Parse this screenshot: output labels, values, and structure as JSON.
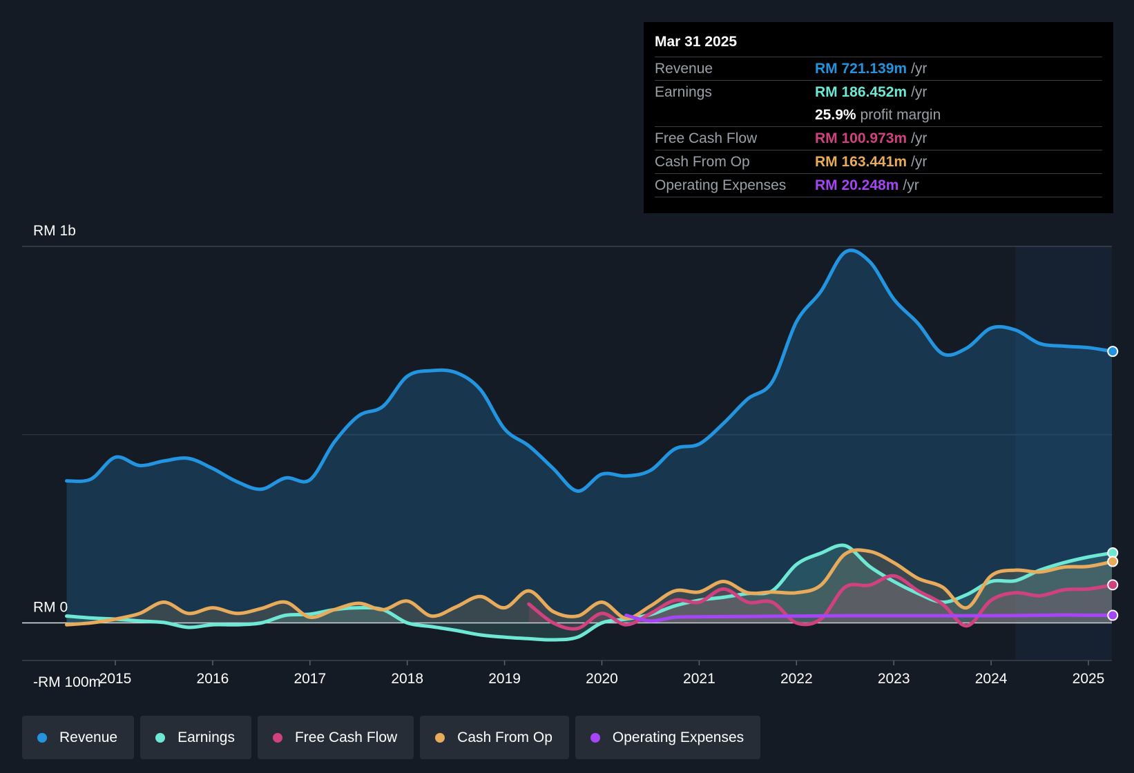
{
  "tooltip": {
    "date": "Mar 31 2025",
    "rows": [
      {
        "label": "Revenue",
        "value": "RM 721.139m",
        "unit": "/yr",
        "color": "#2394df"
      },
      {
        "label": "Earnings",
        "value": "RM 186.452m",
        "unit": "/yr",
        "color": "#6ee7d5"
      },
      {
        "label": "",
        "value": "25.9%",
        "unit": "profit margin",
        "color": "#ffffff"
      },
      {
        "label": "Free Cash Flow",
        "value": "RM 100.973m",
        "unit": "/yr",
        "color": "#d0427f"
      },
      {
        "label": "Cash From Op",
        "value": "RM 163.441m",
        "unit": "/yr",
        "color": "#e8ab5b"
      },
      {
        "label": "Operating Expenses",
        "value": "RM 20.248m",
        "unit": "/yr",
        "color": "#a545f5"
      }
    ]
  },
  "legend": [
    {
      "label": "Revenue",
      "color": "#2394df"
    },
    {
      "label": "Earnings",
      "color": "#6ee7d5"
    },
    {
      "label": "Free Cash Flow",
      "color": "#d0427f"
    },
    {
      "label": "Cash From Op",
      "color": "#e8ab5b"
    },
    {
      "label": "Operating Expenses",
      "color": "#a545f5"
    }
  ],
  "chart_data": {
    "type": "area",
    "title": "",
    "y_labels": [
      "RM 1b",
      "RM 0",
      "-RM 100m"
    ],
    "ylim": [
      -100,
      1000
    ],
    "xlim": [
      2014.5,
      2025.25
    ],
    "forecast_start": 2024.25,
    "x_ticks": [
      "2015",
      "2016",
      "2017",
      "2018",
      "2019",
      "2020",
      "2021",
      "2022",
      "2023",
      "2024",
      "2025"
    ],
    "series": [
      {
        "name": "Revenue",
        "color": "#2394df",
        "filled": true,
        "points": [
          [
            2014.5,
            377
          ],
          [
            2014.75,
            382
          ],
          [
            2015,
            440
          ],
          [
            2015.25,
            418
          ],
          [
            2015.5,
            430
          ],
          [
            2015.75,
            437
          ],
          [
            2016,
            410
          ],
          [
            2016.25,
            375
          ],
          [
            2016.5,
            355
          ],
          [
            2016.75,
            385
          ],
          [
            2017,
            380
          ],
          [
            2017.25,
            480
          ],
          [
            2017.5,
            550
          ],
          [
            2017.75,
            575
          ],
          [
            2018,
            655
          ],
          [
            2018.25,
            670
          ],
          [
            2018.5,
            665
          ],
          [
            2018.75,
            620
          ],
          [
            2019,
            515
          ],
          [
            2019.25,
            470
          ],
          [
            2019.5,
            410
          ],
          [
            2019.75,
            350
          ],
          [
            2020,
            395
          ],
          [
            2020.25,
            390
          ],
          [
            2020.5,
            405
          ],
          [
            2020.75,
            462
          ],
          [
            2021,
            475
          ],
          [
            2021.25,
            530
          ],
          [
            2021.5,
            595
          ],
          [
            2021.75,
            640
          ],
          [
            2022,
            800
          ],
          [
            2022.25,
            880
          ],
          [
            2022.5,
            985
          ],
          [
            2022.75,
            960
          ],
          [
            2023,
            860
          ],
          [
            2023.25,
            795
          ],
          [
            2023.5,
            715
          ],
          [
            2023.75,
            730
          ],
          [
            2024,
            783
          ],
          [
            2024.25,
            778
          ],
          [
            2024.5,
            742
          ],
          [
            2024.75,
            735
          ],
          [
            2025,
            731
          ],
          [
            2025.25,
            721
          ]
        ]
      },
      {
        "name": "Earnings",
        "color": "#6ee7d5",
        "filled": true,
        "points": [
          [
            2014.5,
            18
          ],
          [
            2014.75,
            13
          ],
          [
            2015,
            10
          ],
          [
            2015.25,
            5
          ],
          [
            2015.5,
            1
          ],
          [
            2015.75,
            -12
          ],
          [
            2016,
            -5
          ],
          [
            2016.25,
            -5
          ],
          [
            2016.5,
            0
          ],
          [
            2016.75,
            20
          ],
          [
            2017,
            23
          ],
          [
            2017.25,
            35
          ],
          [
            2017.5,
            40
          ],
          [
            2017.75,
            35
          ],
          [
            2018,
            0
          ],
          [
            2018.25,
            -10
          ],
          [
            2018.5,
            -20
          ],
          [
            2018.75,
            -32
          ],
          [
            2019,
            -38
          ],
          [
            2019.25,
            -42
          ],
          [
            2019.5,
            -45
          ],
          [
            2019.75,
            -38
          ],
          [
            2020,
            0
          ],
          [
            2020.25,
            10
          ],
          [
            2020.5,
            22
          ],
          [
            2020.75,
            45
          ],
          [
            2021,
            60
          ],
          [
            2021.25,
            68
          ],
          [
            2021.5,
            78
          ],
          [
            2021.75,
            85
          ],
          [
            2022,
            155
          ],
          [
            2022.25,
            185
          ],
          [
            2022.5,
            205
          ],
          [
            2022.75,
            150
          ],
          [
            2023,
            110
          ],
          [
            2023.25,
            78
          ],
          [
            2023.5,
            55
          ],
          [
            2023.75,
            75
          ],
          [
            2024,
            110
          ],
          [
            2024.25,
            112
          ],
          [
            2024.5,
            140
          ],
          [
            2024.75,
            160
          ],
          [
            2025,
            175
          ],
          [
            2025.25,
            186
          ]
        ]
      },
      {
        "name": "Free Cash Flow",
        "color": "#d0427f",
        "filled": true,
        "points": [
          [
            2019.25,
            50
          ],
          [
            2019.5,
            0
          ],
          [
            2019.75,
            -15
          ],
          [
            2020,
            25
          ],
          [
            2020.25,
            -5
          ],
          [
            2020.5,
            25
          ],
          [
            2020.75,
            60
          ],
          [
            2021,
            55
          ],
          [
            2021.25,
            90
          ],
          [
            2021.5,
            55
          ],
          [
            2021.75,
            55
          ],
          [
            2022,
            0
          ],
          [
            2022.25,
            10
          ],
          [
            2022.5,
            95
          ],
          [
            2022.75,
            100
          ],
          [
            2023,
            125
          ],
          [
            2023.25,
            85
          ],
          [
            2023.5,
            50
          ],
          [
            2023.75,
            -8
          ],
          [
            2024,
            60
          ],
          [
            2024.25,
            80
          ],
          [
            2024.5,
            72
          ],
          [
            2024.75,
            88
          ],
          [
            2025,
            90
          ],
          [
            2025.25,
            101
          ]
        ]
      },
      {
        "name": "Cash From Op",
        "color": "#e8ab5b",
        "filled": true,
        "points": [
          [
            2014.5,
            -5
          ],
          [
            2014.75,
            0
          ],
          [
            2015,
            10
          ],
          [
            2015.25,
            25
          ],
          [
            2015.5,
            55
          ],
          [
            2015.75,
            25
          ],
          [
            2016,
            40
          ],
          [
            2016.25,
            25
          ],
          [
            2016.5,
            38
          ],
          [
            2016.75,
            55
          ],
          [
            2017,
            15
          ],
          [
            2017.25,
            35
          ],
          [
            2017.5,
            52
          ],
          [
            2017.75,
            35
          ],
          [
            2018,
            58
          ],
          [
            2018.25,
            18
          ],
          [
            2018.5,
            42
          ],
          [
            2018.75,
            70
          ],
          [
            2019,
            40
          ],
          [
            2019.25,
            85
          ],
          [
            2019.5,
            30
          ],
          [
            2019.75,
            18
          ],
          [
            2020,
            55
          ],
          [
            2020.25,
            12
          ],
          [
            2020.5,
            45
          ],
          [
            2020.75,
            85
          ],
          [
            2021,
            82
          ],
          [
            2021.25,
            110
          ],
          [
            2021.5,
            80
          ],
          [
            2021.75,
            82
          ],
          [
            2022,
            80
          ],
          [
            2022.25,
            100
          ],
          [
            2022.5,
            183
          ],
          [
            2022.75,
            190
          ],
          [
            2023,
            160
          ],
          [
            2023.25,
            118
          ],
          [
            2023.5,
            95
          ],
          [
            2023.75,
            40
          ],
          [
            2024,
            125
          ],
          [
            2024.25,
            140
          ],
          [
            2024.5,
            135
          ],
          [
            2024.75,
            148
          ],
          [
            2025,
            150
          ],
          [
            2025.25,
            163
          ]
        ]
      },
      {
        "name": "Operating Expenses",
        "color": "#a545f5",
        "filled": false,
        "points": [
          [
            2020.25,
            20
          ],
          [
            2020.5,
            5
          ],
          [
            2020.75,
            15
          ],
          [
            2021,
            16
          ],
          [
            2021.5,
            17
          ],
          [
            2022,
            18
          ],
          [
            2022.5,
            19
          ],
          [
            2023,
            19
          ],
          [
            2023.5,
            19
          ],
          [
            2024,
            19
          ],
          [
            2024.5,
            20
          ],
          [
            2024.75,
            21
          ],
          [
            2025,
            20
          ],
          [
            2025.25,
            20
          ]
        ]
      }
    ]
  }
}
